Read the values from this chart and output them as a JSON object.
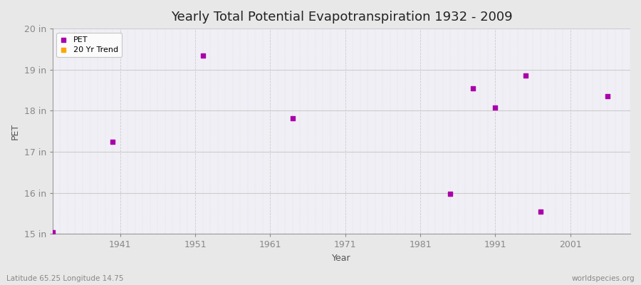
{
  "title": "Yearly Total Potential Evapotranspiration 1932 - 2009",
  "xlabel": "Year",
  "ylabel": "PET",
  "footnote_left": "Latitude 65.25 Longitude 14.75",
  "footnote_right": "worldspecies.org",
  "xlim": [
    1932,
    2009
  ],
  "ylim": [
    15,
    20
  ],
  "yticks": [
    15,
    16,
    17,
    18,
    19,
    20
  ],
  "ytick_labels": [
    "15 in",
    "16 in",
    "17 in",
    "18 in",
    "19 in",
    "20 in"
  ],
  "xticks": [
    1941,
    1951,
    1961,
    1971,
    1981,
    1991,
    2001
  ],
  "pet_color": "#AA00AA",
  "trend_color": "#FFA500",
  "bg_color": "#E8E8E8",
  "plot_bg_color": "#F0EFF5",
  "grid_major_color": "#CCCCCC",
  "grid_minor_color": "#DDDDDD",
  "data_points": [
    [
      1932,
      15.05
    ],
    [
      1940,
      17.25
    ],
    [
      1952,
      19.35
    ],
    [
      1964,
      17.82
    ],
    [
      1985,
      15.97
    ],
    [
      1988,
      18.55
    ],
    [
      1991,
      18.08
    ],
    [
      1995,
      18.85
    ],
    [
      1997,
      15.55
    ],
    [
      2006,
      18.35
    ]
  ],
  "legend_pet_label": "PET",
  "legend_trend_label": "20 Yr Trend",
  "title_fontsize": 13,
  "axis_label_fontsize": 9,
  "tick_label_fontsize": 9,
  "legend_fontsize": 8
}
